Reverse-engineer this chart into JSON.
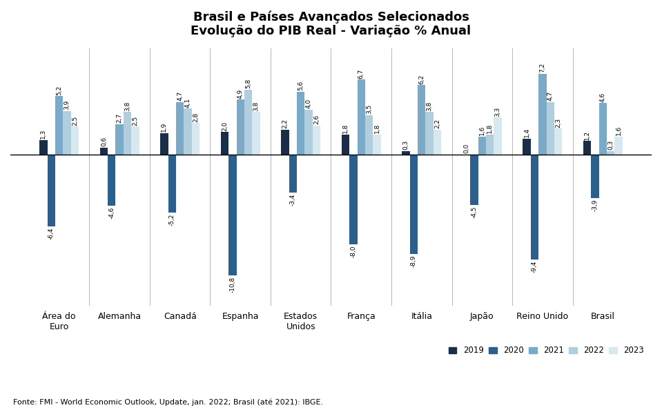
{
  "title": "Brasil e Países Avançados Selecionados\nEvolução do PIB Real - Variação % Anual",
  "categories": [
    "Área do\nEuro",
    "Alemanha",
    "Canadá",
    "Espanha",
    "Estados\nUnidos",
    "França",
    "Itália",
    "Japão",
    "Reino Unido",
    "Brasil"
  ],
  "years": [
    "2019",
    "2020",
    "2021",
    "2022",
    "2023"
  ],
  "colors": [
    "#1a2e4a",
    "#2b5f8e",
    "#7aaac8",
    "#b0cede",
    "#d8e8f0"
  ],
  "data": {
    "2019": [
      1.3,
      0.6,
      1.9,
      2.0,
      2.2,
      1.8,
      0.3,
      0.0,
      1.4,
      1.2
    ],
    "2020": [
      -6.4,
      -4.6,
      -5.2,
      -10.8,
      -3.4,
      -8.0,
      -8.9,
      -4.5,
      -9.4,
      -3.9
    ],
    "2021": [
      5.2,
      2.7,
      4.7,
      4.9,
      5.6,
      6.7,
      6.2,
      1.6,
      7.2,
      4.6
    ],
    "2022": [
      3.9,
      3.8,
      4.1,
      5.8,
      4.0,
      3.5,
      3.8,
      1.8,
      4.7,
      0.3
    ],
    "2023": [
      2.5,
      2.5,
      2.8,
      3.8,
      2.6,
      1.8,
      2.2,
      3.3,
      2.3,
      1.6
    ]
  },
  "footnote": "Fonte: FMI - World Economic Outlook, Update, jan. 2022; Brasil (até 2021): IBGE.",
  "ylim": [
    -13.5,
    9.5
  ],
  "bar_width": 0.13,
  "label_fontsize": 6.5,
  "tick_fontsize": 9,
  "legend_fontsize": 8.5,
  "title_fontsize": 13
}
